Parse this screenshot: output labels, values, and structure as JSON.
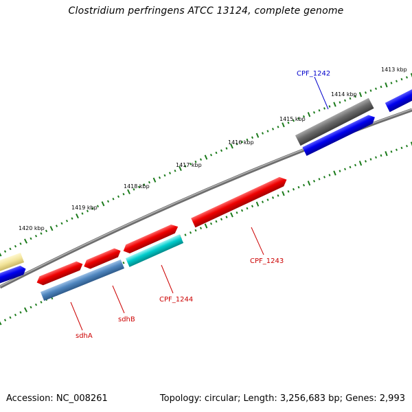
{
  "title": "Clostridium perfringens ATCC 13124, complete genome",
  "footer": {
    "accession": "Accession: NC_008261",
    "summary": "Topology: circular; Length: 3,256,683 bp; Genes: 2,993"
  },
  "ticks": [
    "1413 kbp",
    "1414 kbp",
    "1415 kbp",
    "1416 kbp",
    "1417 kbp",
    "1418 kbp",
    "1419 kbp",
    "1420 kbp"
  ],
  "genes": [
    {
      "name": "CPF_1242",
      "color": "#0000cc"
    },
    {
      "name": "CPF_1243",
      "color": "#cc0000"
    },
    {
      "name": "CPF_1244",
      "color": "#cc0000"
    },
    {
      "name": "sdhB",
      "color": "#cc0000"
    },
    {
      "name": "sdhA",
      "color": "#cc0000"
    }
  ],
  "colors": {
    "backbone": "#8c8c8c",
    "tick": "#1a7a1a",
    "red": "#ee0000",
    "blue": "#0000ee",
    "gray": "#6a6a6a",
    "cyan": "#00cccc",
    "steelblue": "#4f86bf",
    "yellow": "#f2e49a"
  }
}
